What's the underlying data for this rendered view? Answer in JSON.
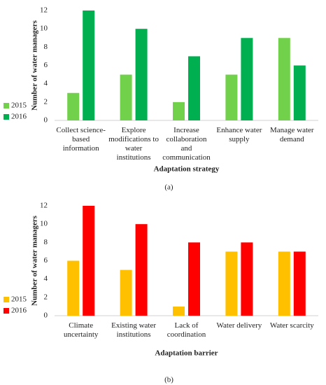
{
  "chart_data": [
    {
      "type": "bar",
      "caption": "(a)",
      "x_label": "Adaptation strategy",
      "y_label": "Number of water managers",
      "categories": [
        "Collect science-based information",
        "Explore modifications to water institutions",
        "Increase collaboration and communication",
        "Enhance water supply",
        "Manage water demand"
      ],
      "series": [
        {
          "name": "2015",
          "color": "#72d14b",
          "values": [
            3,
            5,
            2,
            5,
            9
          ]
        },
        {
          "name": "2016",
          "color": "#00b050",
          "values": [
            12,
            10,
            7,
            9,
            6
          ]
        }
      ],
      "ylim": [
        0,
        12
      ],
      "yticks": [
        0,
        2,
        4,
        6,
        8,
        10,
        12
      ],
      "grid": false,
      "legend": "left"
    },
    {
      "type": "bar",
      "caption": "(b)",
      "x_label": "Adaptation barrier",
      "y_label": "Number of water managers",
      "categories": [
        "Climate uncertainty",
        "Existing water institutions",
        "Lack of coordination",
        "Water delivery",
        "Water scarcity"
      ],
      "series": [
        {
          "name": "2015",
          "color": "#ffc000",
          "values": [
            6,
            5,
            1,
            7,
            7
          ]
        },
        {
          "name": "2016",
          "color": "#ff0000",
          "values": [
            12,
            10,
            8,
            8,
            7
          ]
        }
      ],
      "ylim": [
        0,
        12
      ],
      "yticks": [
        0,
        2,
        4,
        6,
        8,
        10,
        12
      ],
      "grid": false,
      "legend": "left"
    }
  ]
}
